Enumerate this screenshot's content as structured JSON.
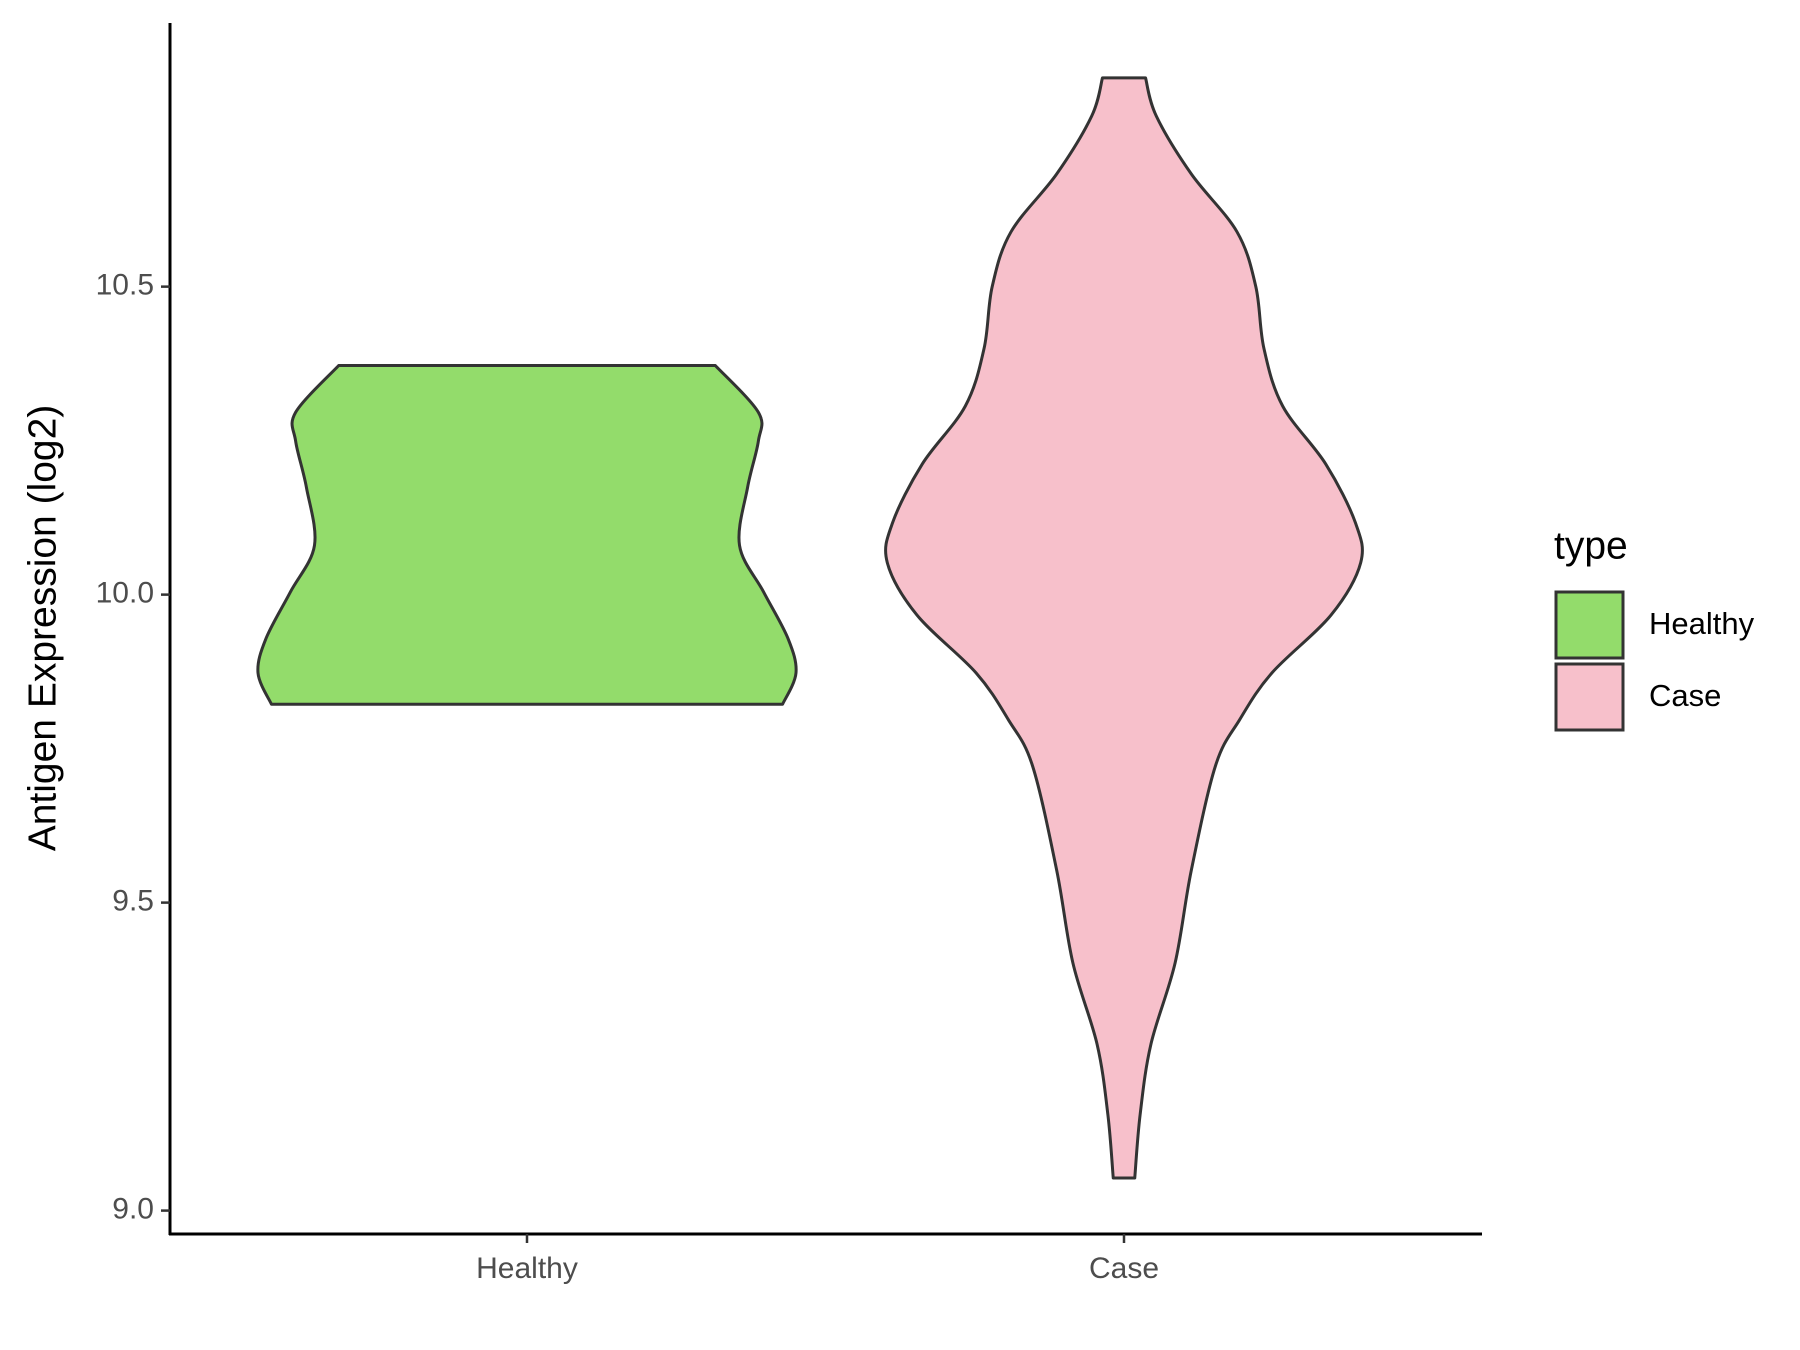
{
  "chart_data": {
    "type": "violin",
    "y_axis_label": "Antigen Expression (log2)",
    "legend_title": "type",
    "categories": [
      "Healthy",
      "Case"
    ],
    "series": [
      {
        "name": "Healthy",
        "color": "#93dc6b",
        "y": [
          10.372,
          10.296,
          10.249,
          10.174,
          10.08,
          10.004,
          9.929,
          9.873,
          9.822
        ],
        "density": [
          0.7,
          0.86,
          0.86,
          0.82,
          0.79,
          0.88,
          0.97,
          1.0,
          0.95
        ]
      },
      {
        "name": "Case",
        "color": "#f7c0cb",
        "y": [
          10.839,
          10.777,
          10.683,
          10.589,
          10.5,
          10.4,
          10.306,
          10.212,
          10.117,
          10.052,
          9.967,
          9.873,
          9.797,
          9.722,
          9.552,
          9.402,
          9.27,
          9.156,
          9.053
        ],
        "density": [
          0.08,
          0.12,
          0.25,
          0.42,
          0.49,
          0.52,
          0.59,
          0.75,
          0.86,
          0.88,
          0.77,
          0.55,
          0.43,
          0.34,
          0.25,
          0.19,
          0.1,
          0.06,
          0.04
        ]
      }
    ],
    "ylim": [
      8.962,
      10.928
    ],
    "yticks": [
      {
        "value": 9,
        "label": "9.0"
      },
      9.5,
      {
        "value": 10,
        "label": "10.0"
      },
      10.5
    ]
  }
}
